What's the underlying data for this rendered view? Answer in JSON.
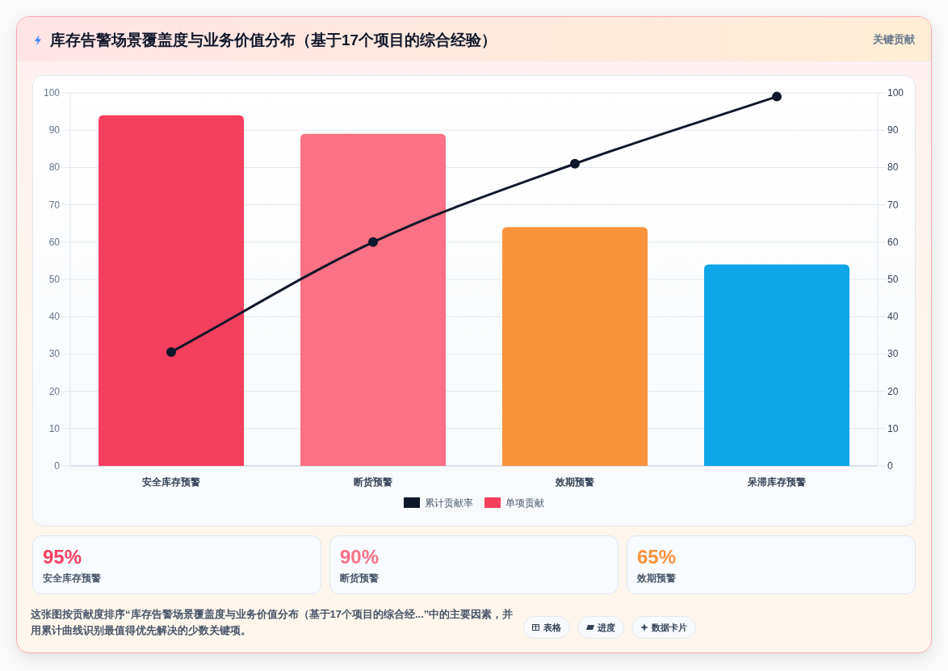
{
  "chart_data": {
    "type": "bar",
    "title": "库存告警场景覆盖度与业务价值分布（基于17个项目的综合经验）",
    "subtitle": "关键贡献",
    "categories": [
      "安全库存预警",
      "断货预警",
      "效期预警",
      "呆滞库存预警"
    ],
    "series": [
      {
        "name": "累计贡献率",
        "type": "line",
        "axis": "y2",
        "color": "#0f172a",
        "values": [
          30.5,
          60,
          81,
          99
        ]
      },
      {
        "name": "单项贡献",
        "type": "bar",
        "colors": [
          "#f43f5e",
          "#fb7185",
          "#fb923c",
          "#0ea5e9"
        ],
        "values": [
          94,
          89,
          64,
          54
        ]
      }
    ],
    "ylim": [
      0,
      100
    ],
    "yticks": [
      0,
      10,
      20,
      30,
      40,
      50,
      60,
      70,
      80,
      90,
      100
    ],
    "y2lim": [
      0,
      100
    ],
    "y2ticks": [
      0,
      10,
      20,
      30,
      40,
      50,
      60,
      70,
      80,
      90,
      100
    ],
    "grid": "y",
    "legend": "bottom",
    "marker": "circle",
    "line_style": "solid",
    "annotations": [
      "95%",
      "安全库存预警",
      "90%",
      "断货预警",
      "65%",
      "效期预警",
      "这张图按贡献度排序“库存告警场景覆盖度与业务价值分布（基于17个项目的综合经...”中的主要因素，并用累计曲线识别最值得优先解决的少数关键项。",
      "表格",
      "进度",
      "数据卡片"
    ]
  }
}
